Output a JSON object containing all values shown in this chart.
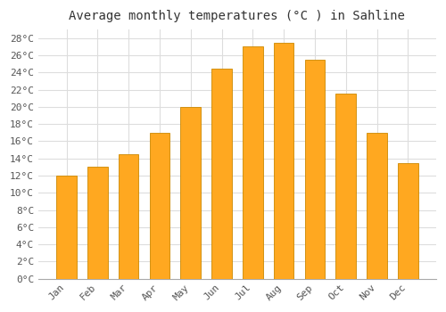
{
  "title": "Average monthly temperatures (°C ) in Sahline",
  "months": [
    "Jan",
    "Feb",
    "Mar",
    "Apr",
    "May",
    "Jun",
    "Jul",
    "Aug",
    "Sep",
    "Oct",
    "Nov",
    "Dec"
  ],
  "values": [
    12,
    13,
    14.5,
    17,
    20,
    24.5,
    27,
    27.5,
    25.5,
    21.5,
    17,
    13.5
  ],
  "bar_color": "#FFA820",
  "bar_edge_color": "#CC8800",
  "background_color": "#FFFFFF",
  "grid_color": "#DDDDDD",
  "ylim": [
    0,
    29
  ],
  "ytick_step": 2,
  "title_fontsize": 10,
  "tick_fontsize": 8,
  "tick_font": "monospace"
}
